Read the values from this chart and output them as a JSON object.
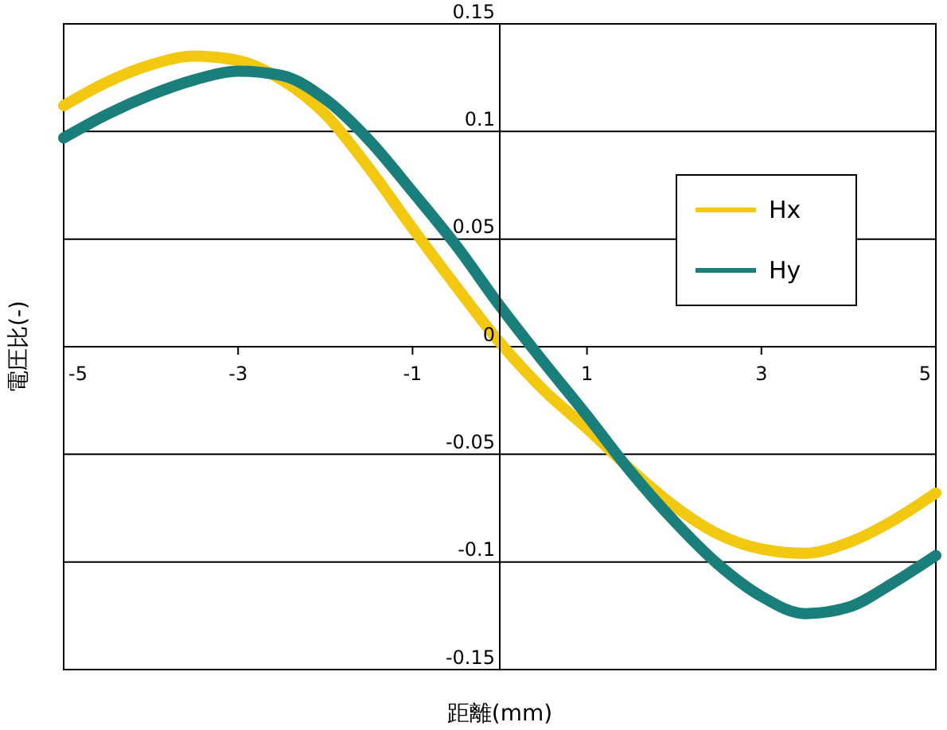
{
  "chart_data": {
    "type": "line",
    "xlabel": "距離(mm)",
    "ylabel": "電圧比(-)",
    "x": [
      -5,
      -4.5,
      -4,
      -3.5,
      -3,
      -2.5,
      -2,
      -1.5,
      -1,
      -0.5,
      0,
      0.5,
      1,
      1.5,
      2,
      2.5,
      3,
      3.5,
      4,
      4.5,
      5
    ],
    "series": [
      {
        "name": "Hx",
        "color": "#f2c811",
        "values": [
          0.112,
          0.123,
          0.131,
          0.135,
          0.133,
          0.124,
          0.108,
          0.083,
          0.055,
          0.028,
          0.002,
          -0.02,
          -0.038,
          -0.057,
          -0.074,
          -0.087,
          -0.094,
          -0.096,
          -0.091,
          -0.081,
          -0.068
        ]
      },
      {
        "name": "Hy",
        "color": "#1a7f7a",
        "values": [
          0.097,
          0.108,
          0.117,
          0.124,
          0.128,
          0.126,
          0.115,
          0.096,
          0.072,
          0.047,
          0.019,
          -0.007,
          -0.032,
          -0.058,
          -0.081,
          -0.101,
          -0.116,
          -0.124,
          -0.121,
          -0.11,
          -0.097
        ]
      }
    ],
    "xlim": [
      -5,
      5
    ],
    "xticks": [
      -5,
      -3,
      -1,
      1,
      3,
      5
    ],
    "ylim": [
      -0.15,
      0.15
    ],
    "yticks": [
      -0.15,
      -0.1,
      -0.05,
      0,
      0.05,
      0.1,
      0.15
    ],
    "grid": "y",
    "legend": "right",
    "line_style": "solid"
  }
}
